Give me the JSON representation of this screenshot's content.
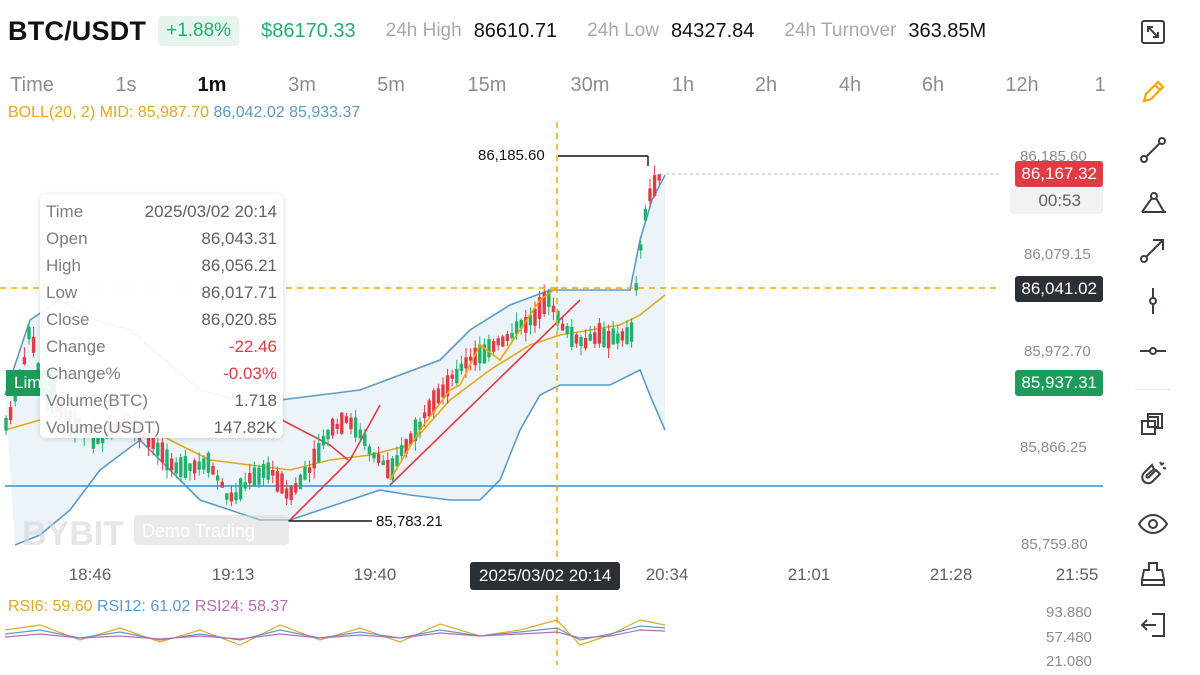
{
  "header": {
    "pair": "BTC/USDT",
    "change_pct": "+1.88%",
    "last_price": "$86170.33",
    "high_label": "24h High",
    "high_value": "86610.71",
    "low_label": "24h Low",
    "low_value": "84327.84",
    "turnover_label": "24h Turnover",
    "turnover_value": "363.85M"
  },
  "intervals": [
    "Time",
    "1s",
    "1m",
    "3m",
    "5m",
    "15m",
    "30m",
    "1h",
    "2h",
    "4h",
    "6h",
    "12h",
    "1"
  ],
  "active_interval": "1m",
  "boll": {
    "label": "BOLL(20, 2) MID: 85,987.70",
    "upper": "86,042.02",
    "lower": "85,933.37"
  },
  "price_axis": [
    "86,185.60",
    "86,079.15",
    "85,972.70",
    "85,866.25",
    "85,759.80"
  ],
  "price_tags": {
    "current": "86,167.32",
    "countdown": "00:53",
    "crosshair": "86,041.02",
    "limit": "85,937.31"
  },
  "markers": {
    "high": "86,185.60",
    "low": "85,783.21",
    "limit_order": "Limit"
  },
  "time_axis": [
    "18:46",
    "19:13",
    "19:40",
    "20:34",
    "21:01",
    "21:28",
    "21:55"
  ],
  "crosshair_time": "2025/03/02 20:14",
  "watermark": {
    "brand": "BYBIT",
    "mode": "Demo Trading"
  },
  "tooltip": [
    {
      "label": "Time",
      "value": "2025/03/02 20:14"
    },
    {
      "label": "Open",
      "value": "86,043.31"
    },
    {
      "label": "High",
      "value": "86,056.21"
    },
    {
      "label": "Low",
      "value": "86,017.71"
    },
    {
      "label": "Close",
      "value": "86,020.85"
    },
    {
      "label": "Change",
      "value": "-22.46"
    },
    {
      "label": "Change%",
      "value": "-0.03%"
    },
    {
      "label": "Volume(BTC)",
      "value": "1.718"
    },
    {
      "label": "Volume(USDT)",
      "value": "147.82K"
    }
  ],
  "rsi": {
    "rsi6": "RSI6: 59.60",
    "rsi12": "RSI12: 61.02",
    "rsi24": "RSI24: 58.37",
    "axis": [
      "93.880",
      "57.480",
      "21.080"
    ]
  },
  "colors": {
    "up": "#20b26c",
    "down": "#e13b45",
    "accent": "#f7a600",
    "boll_mid": "#e3a81e",
    "boll_band": "#5b9bc9"
  },
  "toolbar_icons": [
    "collapse-icon",
    "pencil-icon",
    "trend-line-icon",
    "angle-icon",
    "arrow-line-icon",
    "vertical-line-icon",
    "horizontal-line-icon",
    "copy-icon",
    "magnet-icon",
    "eye-icon",
    "eraser-icon",
    "exit-icon"
  ]
}
